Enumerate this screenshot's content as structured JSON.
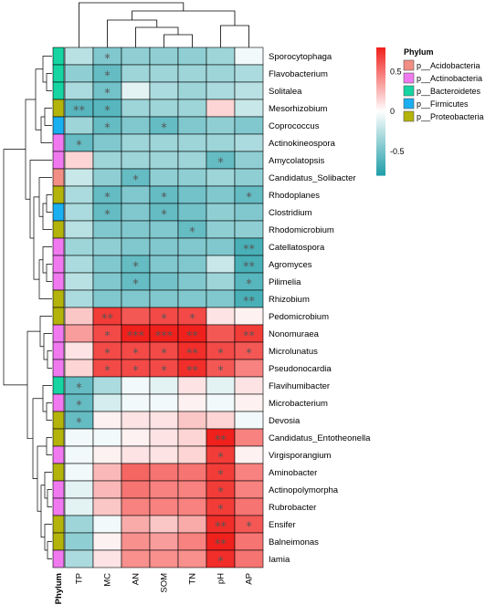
{
  "chart_data": {
    "type": "heatmap",
    "columns": [
      "TP",
      "MC",
      "AN",
      "SOM",
      "TN",
      "pH",
      "AP"
    ],
    "rows": [
      {
        "name": "Sporocytophaga",
        "phylum": "p__Bacteroidetes",
        "values": [
          -0.25,
          -0.45,
          -0.4,
          -0.4,
          -0.4,
          -0.35,
          -0.05
        ],
        "sig": [
          "",
          "*",
          "",
          "",
          "",
          "",
          ""
        ]
      },
      {
        "name": "Flavobacterium",
        "phylum": "p__Bacteroidetes",
        "values": [
          -0.4,
          -0.55,
          -0.35,
          -0.35,
          -0.35,
          -0.35,
          -0.3
        ],
        "sig": [
          "",
          "*",
          "",
          "",
          "",
          "",
          ""
        ]
      },
      {
        "name": "Solitalea",
        "phylum": "p__Bacteroidetes",
        "values": [
          -0.3,
          -0.5,
          -0.1,
          -0.3,
          -0.35,
          -0.3,
          -0.25
        ],
        "sig": [
          "",
          "*",
          "",
          "",
          "",
          "",
          ""
        ]
      },
      {
        "name": "Mesorhizobium",
        "phylum": "p__Proteobacteria",
        "values": [
          -0.6,
          -0.6,
          -0.35,
          -0.35,
          -0.35,
          0.15,
          -0.2
        ],
        "sig": [
          "**",
          "*",
          "",
          "",
          "",
          "",
          ""
        ]
      },
      {
        "name": "Coprococcus",
        "phylum": "p__Firmicutes",
        "values": [
          -0.35,
          -0.55,
          -0.45,
          -0.55,
          -0.45,
          -0.4,
          -0.45
        ],
        "sig": [
          "",
          "*",
          "",
          "*",
          "",
          "",
          ""
        ]
      },
      {
        "name": "Actinokineospora",
        "phylum": "p__Actinobacteria",
        "values": [
          -0.55,
          -0.45,
          -0.35,
          -0.35,
          -0.35,
          -0.35,
          -0.3
        ],
        "sig": [
          "*",
          "",
          "",
          "",
          "",
          "",
          ""
        ]
      },
      {
        "name": "Amycolatopsis",
        "phylum": "p__Actinobacteria",
        "values": [
          0.15,
          -0.35,
          -0.35,
          -0.35,
          -0.35,
          -0.55,
          -0.4
        ],
        "sig": [
          "",
          "",
          "",
          "",
          "",
          "*",
          ""
        ]
      },
      {
        "name": "Candidatus_Solibacter",
        "phylum": "p__Acidobacteria",
        "values": [
          -0.2,
          -0.4,
          -0.55,
          -0.4,
          -0.4,
          -0.35,
          -0.4
        ],
        "sig": [
          "",
          "",
          "*",
          "",
          "",
          "",
          ""
        ]
      },
      {
        "name": "Rhodoplanes",
        "phylum": "p__Proteobacteria",
        "values": [
          -0.3,
          -0.55,
          -0.45,
          -0.55,
          -0.5,
          -0.45,
          -0.55
        ],
        "sig": [
          "",
          "*",
          "",
          "*",
          "",
          "",
          "*"
        ]
      },
      {
        "name": "Clostridium",
        "phylum": "p__Firmicutes",
        "values": [
          -0.3,
          -0.55,
          -0.45,
          -0.55,
          -0.5,
          -0.4,
          -0.45
        ],
        "sig": [
          "",
          "*",
          "",
          "*",
          "",
          "",
          ""
        ]
      },
      {
        "name": "Rhodomicrobium",
        "phylum": "p__Proteobacteria",
        "values": [
          -0.25,
          -0.45,
          -0.45,
          -0.45,
          -0.55,
          -0.4,
          -0.4
        ],
        "sig": [
          "",
          "",
          "",
          "",
          "*",
          "",
          ""
        ]
      },
      {
        "name": "Catellatospora",
        "phylum": "p__Actinobacteria",
        "values": [
          -0.35,
          -0.4,
          -0.45,
          -0.45,
          -0.45,
          -0.45,
          -0.65
        ],
        "sig": [
          "",
          "",
          "",
          "",
          "",
          "",
          "**"
        ]
      },
      {
        "name": "Agromyces",
        "phylum": "p__Actinobacteria",
        "values": [
          -0.3,
          -0.45,
          -0.55,
          -0.45,
          -0.45,
          -0.2,
          -0.65
        ],
        "sig": [
          "",
          "",
          "*",
          "",
          "",
          "",
          "**"
        ]
      },
      {
        "name": "Pilimelia",
        "phylum": "p__Actinobacteria",
        "values": [
          -0.25,
          -0.45,
          -0.55,
          -0.5,
          -0.45,
          -0.35,
          -0.6
        ],
        "sig": [
          "",
          "",
          "*",
          "",
          "",
          "",
          "*"
        ]
      },
      {
        "name": "Rhizobium",
        "phylum": "p__Proteobacteria",
        "values": [
          -0.3,
          -0.45,
          -0.45,
          -0.45,
          -0.45,
          -0.45,
          -0.65
        ],
        "sig": [
          "",
          "",
          "",
          "",
          "",
          "",
          "**"
        ]
      },
      {
        "name": "Pedomicrobium",
        "phylum": "p__Proteobacteria",
        "values": [
          0.2,
          0.7,
          0.6,
          0.65,
          0.65,
          0.1,
          0.05
        ],
        "sig": [
          "",
          "**",
          "",
          "*",
          "*",
          "",
          ""
        ]
      },
      {
        "name": "Nonomuraea",
        "phylum": "p__Actinobacteria",
        "values": [
          0.35,
          0.65,
          0.85,
          0.85,
          0.8,
          0.6,
          0.7
        ],
        "sig": [
          "",
          "*",
          "***",
          "***",
          "**",
          "",
          "**"
        ]
      },
      {
        "name": "Microlunatus",
        "phylum": "p__Actinobacteria",
        "values": [
          0.1,
          0.65,
          0.65,
          0.65,
          0.75,
          0.65,
          0.6
        ],
        "sig": [
          "",
          "*",
          "*",
          "*",
          "**",
          "*",
          "*"
        ]
      },
      {
        "name": "Pseudonocardia",
        "phylum": "p__Actinobacteria",
        "values": [
          0.15,
          0.65,
          0.65,
          0.65,
          0.75,
          0.6,
          0.45
        ],
        "sig": [
          "",
          "*",
          "*",
          "*",
          "**",
          "*",
          ""
        ]
      },
      {
        "name": "Flavihumibacter",
        "phylum": "p__Bacteroidetes",
        "values": [
          -0.55,
          -0.3,
          -0.05,
          -0.1,
          0.1,
          -0.1,
          0.1
        ],
        "sig": [
          "*",
          "",
          "",
          "",
          "",
          "",
          ""
        ]
      },
      {
        "name": "Microbacterium",
        "phylum": "p__Actinobacteria",
        "values": [
          -0.55,
          -0.15,
          -0.05,
          -0.05,
          0.05,
          -0.05,
          0.05
        ],
        "sig": [
          "*",
          "",
          "",
          "",
          "",
          "",
          ""
        ]
      },
      {
        "name": "Devosia",
        "phylum": "p__Proteobacteria",
        "values": [
          -0.55,
          0.05,
          0.1,
          0.1,
          0.2,
          0.15,
          -0.05
        ],
        "sig": [
          "*",
          "",
          "",
          "",
          "",
          "",
          ""
        ]
      },
      {
        "name": "Candidatus_Entotheonella",
        "phylum": "p__Proteobacteria",
        "values": [
          -0.05,
          -0.05,
          0.05,
          0.1,
          0.15,
          0.8,
          0.45
        ],
        "sig": [
          "",
          "",
          "",
          "",
          "",
          "**",
          ""
        ]
      },
      {
        "name": "Virgisporangium",
        "phylum": "p__Actinobacteria",
        "values": [
          -0.05,
          0.05,
          0.1,
          0.1,
          0.15,
          0.7,
          0.05
        ],
        "sig": [
          "",
          "",
          "",
          "",
          "",
          "*",
          ""
        ]
      },
      {
        "name": "Aminobacter",
        "phylum": "p__Proteobacteria",
        "values": [
          -0.05,
          0.25,
          0.55,
          0.5,
          0.5,
          0.7,
          0.45
        ],
        "sig": [
          "",
          "",
          "",
          "",
          "",
          "*",
          ""
        ]
      },
      {
        "name": "Actinopolymorpha",
        "phylum": "p__Actinobacteria",
        "values": [
          -0.1,
          0.25,
          0.5,
          0.45,
          0.45,
          0.7,
          0.45
        ],
        "sig": [
          "",
          "",
          "",
          "",
          "",
          "*",
          ""
        ]
      },
      {
        "name": "Rubrobacter",
        "phylum": "p__Actinobacteria",
        "values": [
          -0.1,
          0.2,
          0.45,
          0.45,
          0.45,
          0.7,
          0.5
        ],
        "sig": [
          "",
          "",
          "",
          "",
          "",
          "*",
          ""
        ]
      },
      {
        "name": "Ensifer",
        "phylum": "p__Proteobacteria",
        "values": [
          -0.35,
          -0.05,
          0.3,
          0.2,
          0.3,
          0.75,
          0.6
        ],
        "sig": [
          "",
          "",
          "",
          "",
          "",
          "**",
          "*"
        ]
      },
      {
        "name": "Balneimonas",
        "phylum": "p__Proteobacteria",
        "values": [
          -0.4,
          0.05,
          0.4,
          0.35,
          0.45,
          0.85,
          0.5
        ],
        "sig": [
          "",
          "",
          "",
          "",
          "",
          "**",
          ""
        ]
      },
      {
        "name": "Iamia",
        "phylum": "p__Actinobacteria",
        "values": [
          -0.3,
          0.1,
          0.4,
          0.4,
          0.4,
          0.75,
          0.5
        ],
        "sig": [
          "",
          "",
          "",
          "",
          "",
          "*",
          ""
        ]
      }
    ],
    "value_range": [
      -0.8,
      0.8
    ],
    "colorbar_ticks": [
      0.5,
      0,
      -0.5
    ],
    "color_low": "#1f9ea8",
    "color_mid": "#ffffff",
    "color_high": "#f0201c",
    "annotation_track_label": "Phylum",
    "legend": {
      "title": "Phylum",
      "placement": "right",
      "items": [
        {
          "label": "p__Acidobacteria",
          "color": "#f28e84"
        },
        {
          "label": "p__Actinobacteria",
          "color": "#f079f0"
        },
        {
          "label": "p__Bacteroidetes",
          "color": "#16d5a2"
        },
        {
          "label": "p__Firmicutes",
          "color": "#1aaff0"
        },
        {
          "label": "p__Proteobacteria",
          "color": "#b3b30b"
        }
      ]
    },
    "row_dendrogram": true,
    "column_dendrogram": true,
    "grid": true
  }
}
